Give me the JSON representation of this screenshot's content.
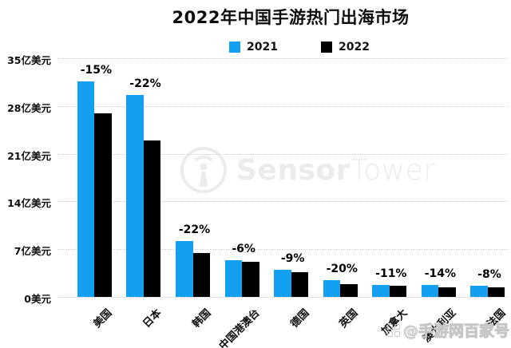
{
  "title": "2022年中国手游热门出海市场",
  "legend": [
    {
      "label": "2021",
      "color": "#14a0f0"
    },
    {
      "label": "2022",
      "color": "#000000"
    }
  ],
  "chart_data": {
    "type": "bar",
    "title": "2022年中国手游热门出海市场",
    "unit": "亿美元",
    "categories": [
      "美国",
      "日本",
      "韩国",
      "中国港澳台",
      "德国",
      "英国",
      "加拿大",
      "澳大利亚",
      "法国"
    ],
    "series": [
      {
        "name": "2021",
        "color": "#14a0f0",
        "values": [
          31.6,
          29.6,
          8.2,
          5.4,
          4.0,
          2.4,
          1.8,
          1.7,
          1.6
        ]
      },
      {
        "name": "2022",
        "color": "#000000",
        "values": [
          26.9,
          23.0,
          6.4,
          5.1,
          3.6,
          1.9,
          1.6,
          1.45,
          1.45
        ]
      }
    ],
    "change_labels": [
      "-15%",
      "-22%",
      "-22%",
      "-6%",
      "-9%",
      "-20%",
      "-11%",
      "-14%",
      "-8%"
    ],
    "y_ticks": [
      {
        "value": 0,
        "label": "0美元"
      },
      {
        "value": 7,
        "label": "7亿美元"
      },
      {
        "value": 14,
        "label": "14亿美元"
      },
      {
        "value": 21,
        "label": "21亿美元"
      },
      {
        "value": 28,
        "label": "28亿美元"
      },
      {
        "value": 35,
        "label": "35亿美元"
      }
    ],
    "ylim": [
      0,
      35
    ],
    "grid": "horizontal-dotted",
    "legend_position": "top-center"
  },
  "watermarks": {
    "sensor_tower": {
      "bold_part": "Sensor",
      "light_part": "Tower",
      "color": "#ececec"
    },
    "baijiahao": {
      "text": "@手游网百家号",
      "color": "#e8e8e8"
    }
  }
}
